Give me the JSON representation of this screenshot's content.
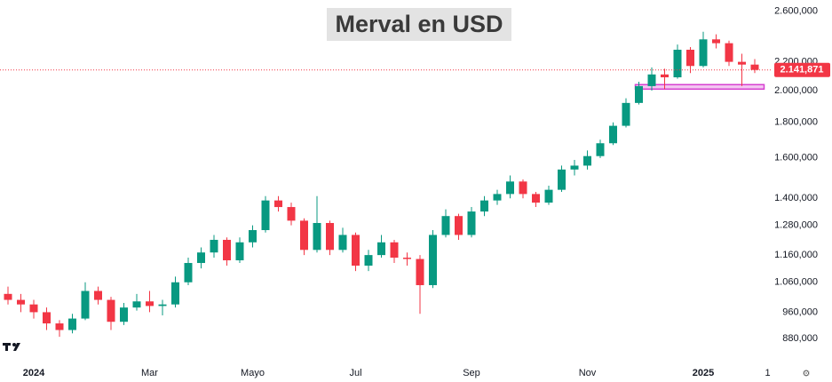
{
  "chart_data": {
    "type": "candlestick",
    "title": "Merval en USD",
    "categories": [
      null,
      null,
      "2024",
      null,
      null,
      null,
      null,
      null,
      null,
      null,
      null,
      "Mar",
      null,
      null,
      null,
      null,
      null,
      null,
      null,
      "Mayo",
      null,
      null,
      null,
      null,
      null,
      null,
      null,
      "Jul",
      null,
      null,
      null,
      null,
      null,
      null,
      null,
      null,
      "Sep",
      null,
      null,
      null,
      null,
      null,
      null,
      null,
      null,
      "Nov",
      null,
      null,
      null,
      null,
      null,
      null,
      null,
      null,
      "2025",
      null,
      null,
      null,
      null,
      "1"
    ],
    "open": [
      1020000,
      1000000,
      985000,
      960000,
      925000,
      905000,
      940000,
      1030000,
      1000000,
      930000,
      975000,
      995000,
      980000,
      985000,
      1060000,
      1130000,
      1170000,
      1220000,
      1140000,
      1210000,
      1260000,
      1390000,
      1360000,
      1300000,
      1180000,
      1290000,
      1180000,
      1240000,
      1120000,
      1160000,
      1210000,
      1150000,
      1145000,
      1050000,
      1240000,
      1320000,
      1240000,
      1340000,
      1390000,
      1420000,
      1480000,
      1420000,
      1380000,
      1440000,
      1540000,
      1560000,
      1610000,
      1680000,
      1780000,
      1920000,
      2030000,
      2110000,
      2090000,
      2290000,
      2170000,
      2370000,
      2340000,
      2200000,
      2180000,
      null
    ],
    "high": [
      1045000,
      1020000,
      1000000,
      975000,
      935000,
      955000,
      1060000,
      1045000,
      1010000,
      990000,
      1020000,
      1030000,
      1000000,
      1080000,
      1150000,
      1190000,
      1240000,
      1230000,
      1230000,
      1280000,
      1410000,
      1410000,
      1380000,
      1310000,
      1410000,
      1300000,
      1270000,
      1250000,
      1180000,
      1240000,
      1220000,
      1170000,
      1160000,
      1260000,
      1350000,
      1330000,
      1360000,
      1410000,
      1440000,
      1510000,
      1490000,
      1430000,
      1460000,
      1560000,
      1590000,
      1640000,
      1700000,
      1800000,
      1950000,
      2060000,
      2160000,
      2150000,
      2330000,
      2310000,
      2430000,
      2410000,
      2360000,
      2260000,
      2220000,
      null
    ],
    "low": [
      985000,
      960000,
      940000,
      905000,
      885000,
      895000,
      935000,
      985000,
      905000,
      920000,
      965000,
      960000,
      950000,
      975000,
      1050000,
      1110000,
      1150000,
      1120000,
      1130000,
      1190000,
      1250000,
      1340000,
      1280000,
      1160000,
      1170000,
      1160000,
      1170000,
      1100000,
      1100000,
      1150000,
      1130000,
      1120000,
      955000,
      1040000,
      1230000,
      1220000,
      1230000,
      1320000,
      1370000,
      1400000,
      1400000,
      1360000,
      1370000,
      1430000,
      1510000,
      1540000,
      1600000,
      1670000,
      1770000,
      1910000,
      2000000,
      2010000,
      2080000,
      2120000,
      2160000,
      2300000,
      2170000,
      2030000,
      2120000,
      null
    ],
    "close": [
      1000000,
      985000,
      960000,
      925000,
      905000,
      940000,
      1030000,
      1000000,
      930000,
      975000,
      995000,
      980000,
      985000,
      1060000,
      1130000,
      1170000,
      1220000,
      1140000,
      1210000,
      1260000,
      1390000,
      1360000,
      1300000,
      1180000,
      1290000,
      1180000,
      1240000,
      1120000,
      1160000,
      1210000,
      1150000,
      1145000,
      1050000,
      1240000,
      1320000,
      1240000,
      1340000,
      1390000,
      1420000,
      1480000,
      1420000,
      1380000,
      1440000,
      1540000,
      1560000,
      1610000,
      1680000,
      1780000,
      1920000,
      2030000,
      2110000,
      2090000,
      2290000,
      2170000,
      2370000,
      2340000,
      2200000,
      2180000,
      2141871,
      null
    ],
    "up_color": "#089981",
    "down_color": "#f23645",
    "ylim": [
      820000,
      2700000
    ],
    "log_scale": true,
    "yticks": [
      {
        "value": 880000,
        "label": "880,000"
      },
      {
        "value": 960000,
        "label": "960,000"
      },
      {
        "value": 1060000,
        "label": "1.060,000"
      },
      {
        "value": 1160000,
        "label": "1.160,000"
      },
      {
        "value": 1280000,
        "label": "1.280,000"
      },
      {
        "value": 1400000,
        "label": "1.400,000"
      },
      {
        "value": 1600000,
        "label": "1.600,000"
      },
      {
        "value": 1800000,
        "label": "1.800,000"
      },
      {
        "value": 2000000,
        "label": "2.000,000"
      },
      {
        "value": 2200000,
        "label": "2.200,000"
      },
      {
        "value": 2600000,
        "label": "2.600,000"
      }
    ],
    "grid": false,
    "last_price": 2141871,
    "last_price_label": "2.141,871",
    "last_price_color": "#f23645",
    "highlight": {
      "from_index": 49,
      "to_index": 59,
      "low": 2010000,
      "high": 2040000,
      "color": "#d63fd0"
    }
  }
}
